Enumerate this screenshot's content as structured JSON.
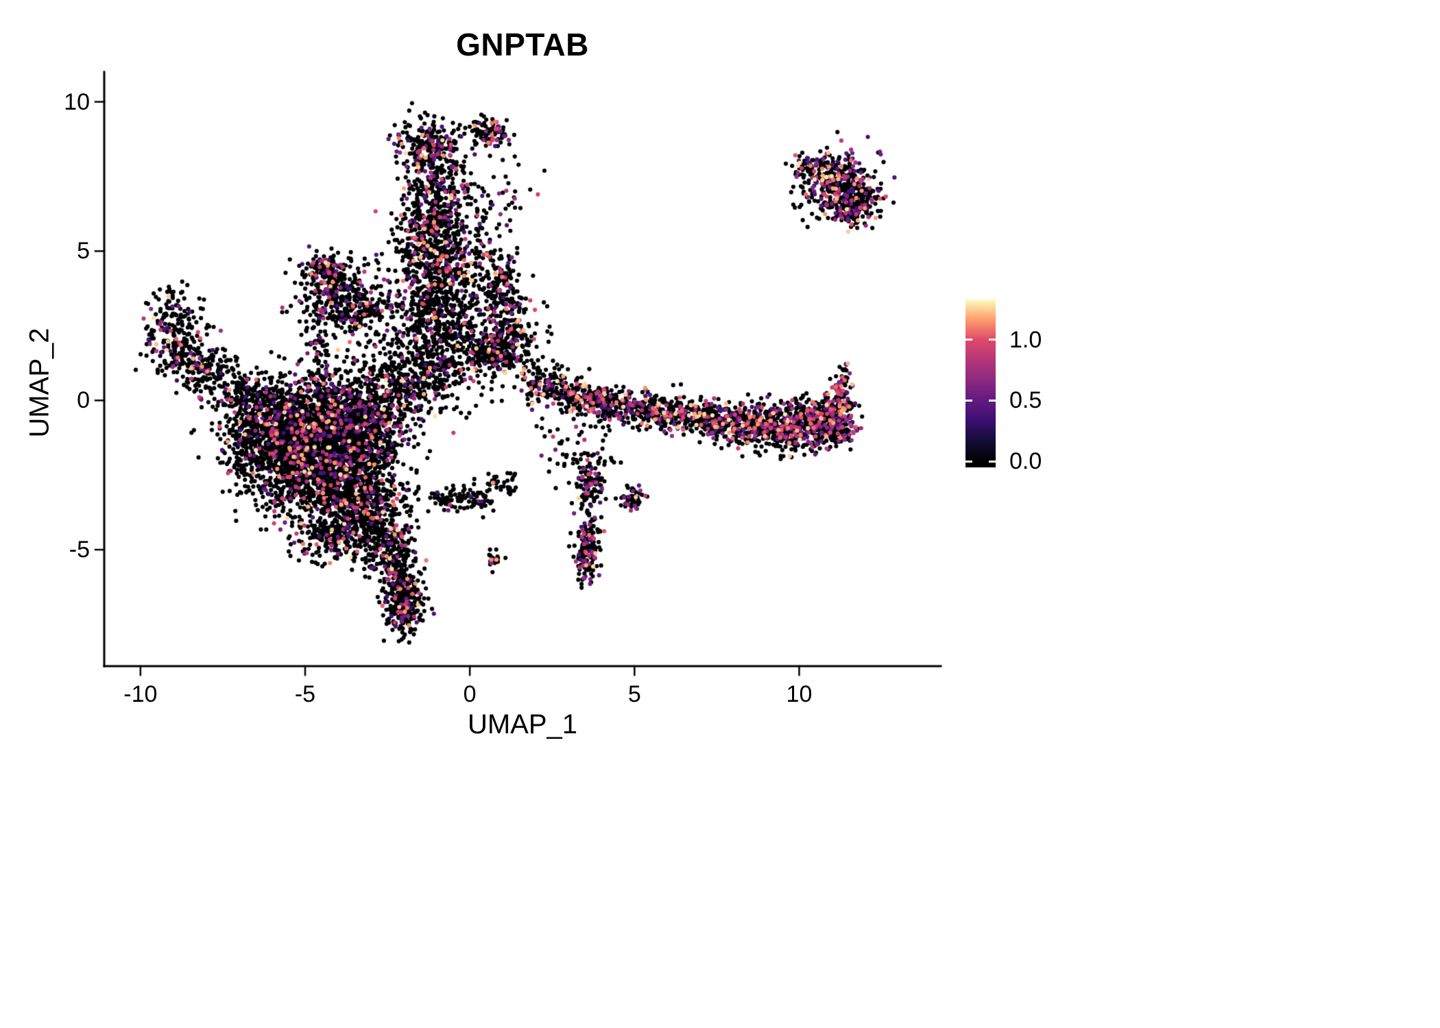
{
  "chart_data": {
    "type": "scatter",
    "title": "GNPTAB",
    "xlabel": "UMAP_1",
    "ylabel": "UMAP_2",
    "x_ticks": [
      -10,
      -5,
      0,
      5,
      10
    ],
    "x_tick_labels": [
      "-10",
      "-5",
      "0",
      "5",
      "10"
    ],
    "y_ticks": [
      -5,
      0,
      5,
      10
    ],
    "y_tick_labels": [
      "-5",
      "0",
      "5",
      "10"
    ],
    "x_range": [
      -11.1,
      14.3
    ],
    "y_range": [
      -8.9,
      11.0
    ],
    "grid": false,
    "legend_position": "right",
    "point_radius": 3.1,
    "seed": 42,
    "colorbar": {
      "tick_values": [
        0.0,
        0.5,
        1.0
      ],
      "tick_labels": [
        "0.0",
        "0.5",
        "1.0"
      ],
      "value_domain": [
        -0.05,
        1.33
      ],
      "color_value_max": 1.33,
      "colormap_name": "magma",
      "colormap_stops": [
        [
          0.0,
          "#000004"
        ],
        [
          0.13,
          "#140E36"
        ],
        [
          0.25,
          "#3B0F70"
        ],
        [
          0.38,
          "#641A80"
        ],
        [
          0.5,
          "#8C2981"
        ],
        [
          0.63,
          "#B63679"
        ],
        [
          0.75,
          "#DE4968"
        ],
        [
          0.88,
          "#FE9F6D"
        ],
        [
          1.0,
          "#FCFDBF"
        ]
      ]
    },
    "zero_expression_value": 0,
    "colored_value_min": 0.35,
    "colored_value_max": 1.3,
    "clusters_format": [
      "center_x",
      "center_y",
      "sd_x",
      "sd_y",
      "n_points",
      "colored_fraction"
    ],
    "clusters": [
      [
        -4.6,
        -1.8,
        1.05,
        1.15,
        2000,
        0.13
      ],
      [
        -3.5,
        -0.7,
        0.9,
        0.8,
        850,
        0.13
      ],
      [
        -5.5,
        -0.9,
        0.8,
        0.6,
        480,
        0.12
      ],
      [
        -3.3,
        -3.5,
        0.7,
        0.85,
        600,
        0.13
      ],
      [
        -2.5,
        -4.9,
        0.35,
        0.5,
        160,
        0.15
      ],
      [
        -2.15,
        -6.0,
        0.3,
        0.5,
        160,
        0.15
      ],
      [
        -1.95,
        -7.0,
        0.3,
        0.45,
        200,
        0.18
      ],
      [
        -6.6,
        -1.3,
        0.6,
        0.7,
        200,
        0.1
      ],
      [
        -4.2,
        -4.6,
        0.5,
        0.4,
        150,
        0.12
      ],
      [
        -9.0,
        2.7,
        0.45,
        0.5,
        120,
        0.15
      ],
      [
        -8.8,
        1.6,
        0.5,
        0.45,
        150,
        0.15
      ],
      [
        -7.9,
        0.9,
        0.5,
        0.4,
        130,
        0.12
      ],
      [
        -6.9,
        0.3,
        0.55,
        0.35,
        110,
        0.12
      ],
      [
        -6.1,
        -0.1,
        0.5,
        0.35,
        80,
        0.1
      ],
      [
        -4.35,
        4.35,
        0.25,
        0.28,
        130,
        0.2
      ],
      [
        -4.0,
        3.5,
        0.65,
        0.55,
        260,
        0.15
      ],
      [
        -3.3,
        2.9,
        0.5,
        0.4,
        110,
        0.12
      ],
      [
        -4.6,
        2.0,
        0.18,
        0.8,
        70,
        0.12
      ],
      [
        -1.3,
        8.5,
        0.45,
        0.45,
        230,
        0.25
      ],
      [
        0.55,
        9.0,
        0.35,
        0.25,
        90,
        0.25
      ],
      [
        -0.9,
        7.1,
        0.5,
        0.75,
        210,
        0.15
      ],
      [
        -1.15,
        5.7,
        0.55,
        0.75,
        340,
        0.18
      ],
      [
        -0.6,
        4.5,
        0.7,
        0.6,
        240,
        0.15
      ],
      [
        -1.3,
        3.2,
        0.7,
        0.9,
        330,
        0.13
      ],
      [
        -0.5,
        1.9,
        0.85,
        0.85,
        360,
        0.13
      ],
      [
        -1.8,
        0.8,
        0.8,
        0.7,
        300,
        0.12
      ],
      [
        0.8,
        6.4,
        0.5,
        1.1,
        60,
        0.12
      ],
      [
        0.95,
        3.9,
        0.33,
        0.5,
        130,
        0.2
      ],
      [
        1.2,
        2.2,
        0.45,
        0.6,
        200,
        0.18
      ],
      [
        0.85,
        1.6,
        0.3,
        0.3,
        110,
        0.15
      ],
      [
        1.9,
        0.8,
        0.8,
        0.7,
        50,
        0.1
      ],
      [
        2.3,
        0.5,
        0.35,
        0.3,
        90,
        0.25
      ],
      [
        3.1,
        0.2,
        0.4,
        0.3,
        120,
        0.25
      ],
      [
        3.9,
        -0.1,
        0.4,
        0.28,
        110,
        0.25
      ],
      [
        4.7,
        -0.2,
        0.45,
        0.28,
        110,
        0.28
      ],
      [
        5.6,
        -0.4,
        0.5,
        0.3,
        140,
        0.28
      ],
      [
        6.6,
        -0.5,
        0.5,
        0.3,
        150,
        0.28
      ],
      [
        7.6,
        -0.7,
        0.5,
        0.3,
        160,
        0.3
      ],
      [
        8.6,
        -0.8,
        0.55,
        0.35,
        210,
        0.3
      ],
      [
        9.6,
        -0.85,
        0.55,
        0.4,
        260,
        0.3
      ],
      [
        10.5,
        -0.8,
        0.45,
        0.4,
        270,
        0.32
      ],
      [
        11.15,
        -0.6,
        0.3,
        0.45,
        210,
        0.32
      ],
      [
        11.3,
        0.4,
        0.15,
        0.4,
        70,
        0.3
      ],
      [
        3.3,
        -1.6,
        0.6,
        0.6,
        60,
        0.15
      ],
      [
        3.55,
        -5.05,
        0.18,
        0.55,
        170,
        0.25
      ],
      [
        3.7,
        -2.9,
        0.25,
        0.45,
        110,
        0.2
      ],
      [
        4.95,
        -3.3,
        0.2,
        0.2,
        50,
        0.2
      ],
      [
        -0.6,
        -3.3,
        0.35,
        0.25,
        60,
        0.12
      ],
      [
        0.3,
        -3.3,
        0.35,
        0.22,
        50,
        0.12
      ],
      [
        1.0,
        -2.8,
        0.25,
        0.2,
        35,
        0.12
      ],
      [
        0.75,
        -5.3,
        0.12,
        0.15,
        22,
        0.15
      ],
      [
        11.2,
        7.2,
        0.55,
        0.5,
        380,
        0.3
      ],
      [
        10.3,
        7.8,
        0.3,
        0.18,
        60,
        0.2
      ],
      [
        12.0,
        6.6,
        0.3,
        0.3,
        70,
        0.25
      ],
      [
        11.5,
        6.25,
        0.25,
        0.2,
        60,
        0.25
      ],
      [
        12.45,
        8.3,
        0.06,
        0.06,
        3,
        0.9
      ]
    ]
  }
}
